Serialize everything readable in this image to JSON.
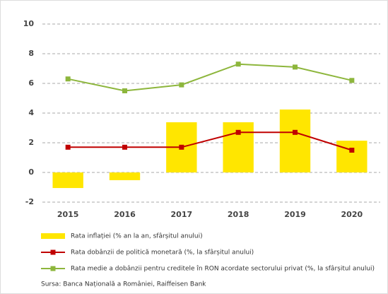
{
  "chart_data": {
    "type": "bar",
    "categories": [
      "2015",
      "2016",
      "2017",
      "2018",
      "2019",
      "2020"
    ],
    "series": [
      {
        "name": "Rata inflației (% an la an, sfârșitul anului)",
        "mark": "bar",
        "color": "#ffe600",
        "values": [
          -1.05,
          -0.52,
          3.38,
          3.38,
          4.24,
          2.14
        ]
      },
      {
        "name": "Rata dobânzii de politică monetară (%, la sfârșitul anului)",
        "mark": "line",
        "color": "#c00000",
        "values": [
          1.7,
          1.7,
          1.7,
          2.7,
          2.7,
          1.5
        ]
      },
      {
        "name": "Rata medie a dobânzii pentru creditele în RON acordate sectorului privat (%, la sfârșitul anului)",
        "mark": "line",
        "color": "#8db63c",
        "values": [
          6.3,
          5.5,
          5.9,
          7.3,
          7.1,
          6.2
        ]
      }
    ],
    "ylim": [
      -2,
      10
    ],
    "yticks": [
      -2,
      0,
      2,
      4,
      6,
      8,
      10
    ],
    "grid": true,
    "source": "Sursa: Banca Națională a României, Raiffeisen Bank"
  }
}
